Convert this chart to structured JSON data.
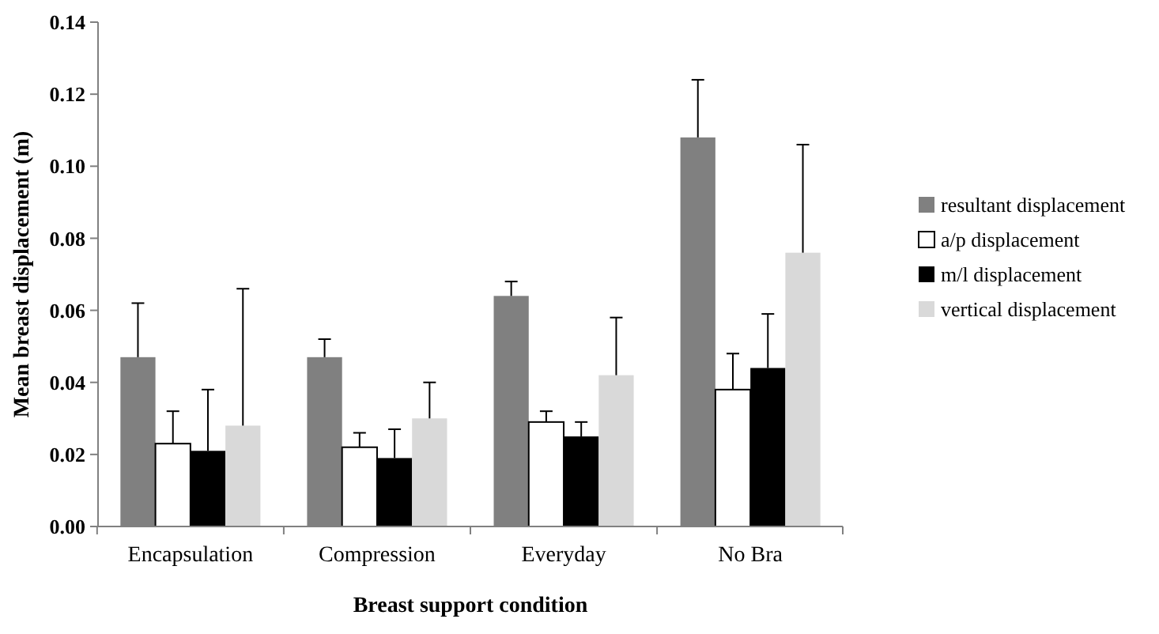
{
  "chart_data": {
    "type": "bar",
    "xlabel": "Breast support condition",
    "ylabel": "Mean breast displacement (m)",
    "categories": [
      "Encapsulation",
      "Compression",
      "Everyday",
      "No Bra"
    ],
    "series": [
      {
        "name": "resultant displacement",
        "color": "#808080",
        "values": [
          0.047,
          0.047,
          0.064,
          0.108
        ],
        "errors": [
          [
            0.047,
            0.062
          ],
          [
            0.047,
            0.052
          ],
          [
            0.064,
            0.068
          ],
          [
            0.108,
            0.124
          ]
        ]
      },
      {
        "name": "a/p displacement",
        "color": "#ffffff",
        "values": [
          0.023,
          0.022,
          0.029,
          0.038
        ],
        "errors": [
          [
            0.023,
            0.032
          ],
          [
            0.022,
            0.026
          ],
          [
            0.029,
            0.032
          ],
          [
            0.038,
            0.048
          ]
        ]
      },
      {
        "name": "m/l displacement",
        "color": "#000000",
        "values": [
          0.021,
          0.019,
          0.025,
          0.044
        ],
        "errors": [
          [
            0.021,
            0.038
          ],
          [
            0.019,
            0.027
          ],
          [
            0.025,
            0.029
          ],
          [
            0.044,
            0.059
          ]
        ]
      },
      {
        "name": "vertical displacement",
        "color": "#d9d9d9",
        "values": [
          0.028,
          0.03,
          0.042,
          0.076
        ],
        "errors": [
          [
            0.028,
            0.066
          ],
          [
            0.03,
            0.04
          ],
          [
            0.042,
            0.058
          ],
          [
            0.076,
            0.106
          ]
        ]
      }
    ],
    "ylim": [
      0,
      0.14
    ],
    "yticks": [
      {
        "value": 0,
        "label": "0.00"
      },
      {
        "value": 0.02,
        "label": "0.02"
      },
      {
        "value": 0.04,
        "label": "0.04"
      },
      {
        "value": 0.06,
        "label": "0.06"
      },
      {
        "value": 0.08,
        "label": "0.08"
      },
      {
        "value": 0.1,
        "label": "0.10"
      },
      {
        "value": 0.12,
        "label": "0.12"
      },
      {
        "value": 0.14,
        "label": "0.14"
      }
    ],
    "grid": false,
    "legend": "right"
  }
}
